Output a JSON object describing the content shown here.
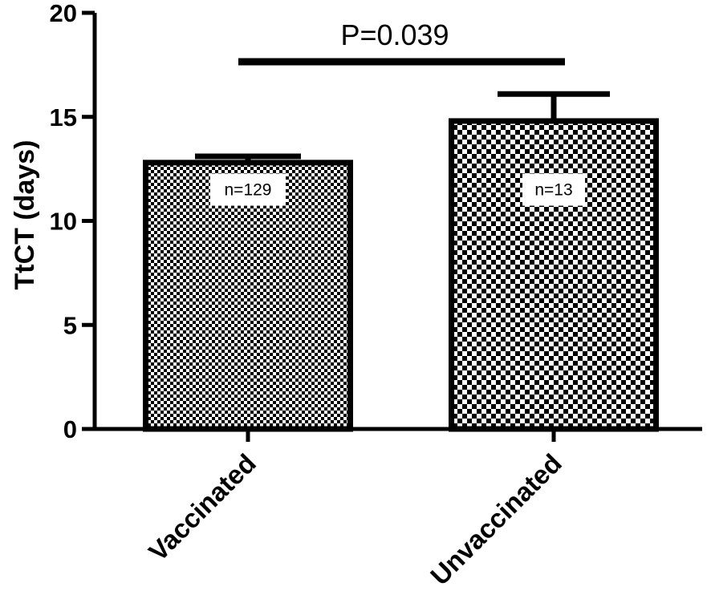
{
  "chart_data": {
    "type": "bar",
    "categories": [
      "Vaccinated",
      "Unvaccinated"
    ],
    "values": [
      12.8,
      14.8
    ],
    "error_upper": [
      13.1,
      16.1
    ],
    "sample_labels": [
      "n=129",
      "n=13"
    ],
    "ylabel": "TtCT (days)",
    "xlabel": "",
    "ylim": [
      0,
      20
    ],
    "yticks": [
      0,
      5,
      10,
      15,
      20
    ],
    "ytick_labels": [
      "0",
      "5",
      "10",
      "15",
      "20"
    ],
    "annotation": "P=0.039",
    "fill_patterns": [
      "fine-checker",
      "coarse-checker"
    ],
    "colors": {
      "ink": "#000000",
      "background": "#ffffff"
    },
    "grid": false,
    "legend": "none"
  }
}
